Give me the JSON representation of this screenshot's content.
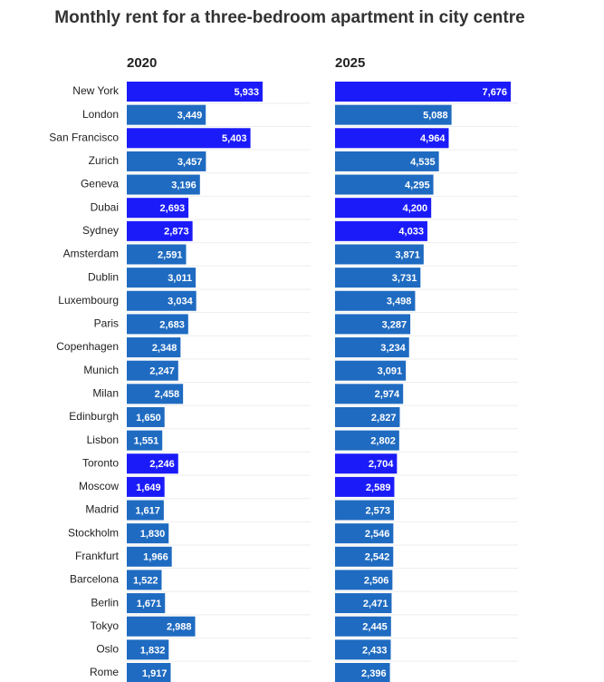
{
  "chart_data": {
    "type": "bar",
    "orientation": "horizontal",
    "title": "Monthly rent for a three-bedroom apartment in city centre",
    "categories": [
      "New York",
      "London",
      "San Francisco",
      "Zurich",
      "Geneva",
      "Dubai",
      "Sydney",
      "Amsterdam",
      "Dublin",
      "Luxembourg",
      "Paris",
      "Copenhagen",
      "Munich",
      "Milan",
      "Edinburgh",
      "Lisbon",
      "Toronto",
      "Moscow",
      "Madrid",
      "Stockholm",
      "Frankfurt",
      "Barcelona",
      "Berlin",
      "Tokyo",
      "Oslo",
      "Rome"
    ],
    "colors": [
      "#1b1bfa",
      "#1f6bc1",
      "#1b1bfa",
      "#1f6bc1",
      "#1f6bc1",
      "#1b1bfa",
      "#1b1bfa",
      "#1f6bc1",
      "#1f6bc1",
      "#1f6bc1",
      "#1f6bc1",
      "#1f6bc1",
      "#1f6bc1",
      "#1f6bc1",
      "#1f6bc1",
      "#1f6bc1",
      "#1b1bfa",
      "#1b1bfa",
      "#1f6bc1",
      "#1f6bc1",
      "#1f6bc1",
      "#1f6bc1",
      "#1f6bc1",
      "#1f6bc1",
      "#1f6bc1",
      "#1f6bc1"
    ],
    "series": [
      {
        "name": "2020",
        "values": [
          5933,
          3449,
          5403,
          3457,
          3196,
          2693,
          2873,
          2591,
          3011,
          3034,
          2683,
          2348,
          2247,
          2458,
          1650,
          1551,
          2246,
          1649,
          1617,
          1830,
          1966,
          1522,
          1671,
          2988,
          1832,
          1917
        ],
        "value_labels": [
          "5,933",
          "3,449",
          "5,403",
          "3,457",
          "3,196",
          "2,693",
          "2,873",
          "2,591",
          "3,011",
          "3,034",
          "2,683",
          "2,348",
          "2,247",
          "2,458",
          "1,650",
          "1,551",
          "2,246",
          "1,649",
          "1,617",
          "1,830",
          "1,966",
          "1,522",
          "1,671",
          "2,988",
          "1,832",
          "1,917"
        ]
      },
      {
        "name": "2025",
        "values": [
          7676,
          5088,
          4964,
          4535,
          4295,
          4200,
          4033,
          3871,
          3731,
          3498,
          3287,
          3234,
          3091,
          2974,
          2827,
          2802,
          2704,
          2589,
          2573,
          2546,
          2542,
          2506,
          2471,
          2445,
          2433,
          2396
        ],
        "value_labels": [
          "7,676",
          "5,088",
          "4,964",
          "4,535",
          "4,295",
          "4,200",
          "4,033",
          "3,871",
          "3,731",
          "3,498",
          "3,287",
          "3,234",
          "3,091",
          "2,974",
          "2,827",
          "2,802",
          "2,704",
          "2,589",
          "2,573",
          "2,546",
          "2,542",
          "2,506",
          "2,471",
          "2,445",
          "2,433",
          "2,396"
        ]
      }
    ]
  }
}
